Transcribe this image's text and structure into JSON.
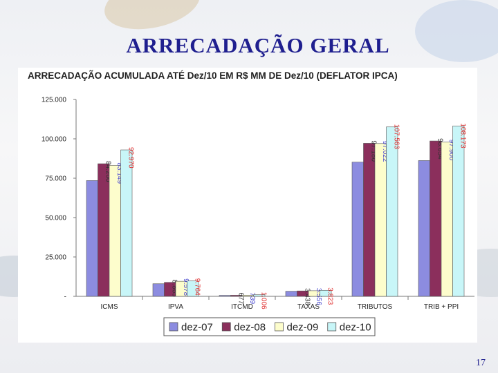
{
  "slide": {
    "title": "ARRECADAÇÃO  GERAL",
    "page_number": "17"
  },
  "colors": {
    "title": "#1f1f8f",
    "series": [
      "#8c8ce0",
      "#8b2f5c",
      "#fdfdcc",
      "#c8f6f8"
    ],
    "label_colors": [
      "#333333",
      "#333333",
      "#4a4ad0",
      "#e03030"
    ]
  },
  "chart_data": {
    "type": "bar",
    "title": "ARRECADAÇÃO ACUMULADA ATÉ Dez/10 EM R$ MM DE Dez/10 (DEFLATOR IPCA)",
    "categories": [
      "ICMS",
      "IPVA",
      "ITCMD",
      "TAXAS",
      "TRIBUTOS",
      "TRIB + PPI"
    ],
    "ylim": [
      0,
      125000
    ],
    "yticks": [
      0,
      25000,
      50000,
      75000,
      100000,
      125000
    ],
    "ytick_labels": [
      "-",
      "25.000",
      "50.000",
      "75.000",
      "100.000",
      "125.000"
    ],
    "legend_position": "bottom",
    "series": [
      {
        "name": "dez-07",
        "values": [
          73500,
          8000,
          600,
          3200,
          85200,
          86200
        ],
        "labels": [
          "",
          "",
          "",
          "",
          "",
          ""
        ]
      },
      {
        "name": "dez-08",
        "values": [
          84200,
          8865,
          677,
          3438,
          97180,
          98654
        ],
        "labels": [
          "84.200",
          "8.865",
          "677",
          "3.438",
          "97.180",
          "98.654"
        ]
      },
      {
        "name": "dez-09",
        "values": [
          83149,
          9578,
          739,
          3556,
          97022,
          97900
        ],
        "labels": [
          "83.149",
          "9.578",
          "739",
          "3.556",
          "97.022",
          "97.900"
        ]
      },
      {
        "name": "dez-10",
        "values": [
          92970,
          9764,
          1006,
          3823,
          107563,
          108173
        ],
        "labels": [
          "92.970",
          "9.764",
          "1.006",
          "3.823",
          "107.563",
          "108.173"
        ]
      }
    ]
  }
}
